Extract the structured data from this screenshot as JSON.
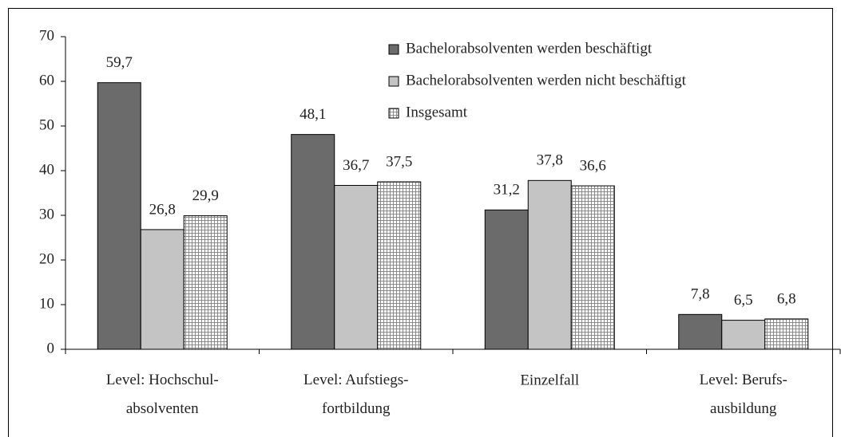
{
  "chart_data": {
    "type": "bar",
    "categories": [
      "Level: Hochschul-\nabsolventen",
      "Level: Aufstiegs-\nfortbildung",
      "Einzelfall",
      "Level: Berufs-\nausbildung"
    ],
    "series": [
      {
        "name": "Bachelorabsolventen werden beschäftigt",
        "color": "#6b6b6b",
        "values": [
          59.7,
          48.1,
          31.2,
          7.8
        ],
        "value_labels": [
          "59,7",
          "48,1",
          "31,2",
          "7,8"
        ]
      },
      {
        "name": "Bachelorabsolventen werden nicht beschäftigt",
        "color": "#c4c4c4",
        "values": [
          26.8,
          36.7,
          37.8,
          6.5
        ],
        "value_labels": [
          "26,8",
          "36,7",
          "37,8",
          "6,5"
        ]
      },
      {
        "name": "Insgesamt",
        "color": "#ffffff",
        "pattern": "grid",
        "values": [
          29.9,
          37.5,
          36.6,
          6.8
        ],
        "value_labels": [
          "29,9",
          "37,5",
          "36,6",
          "6,8"
        ]
      }
    ],
    "ylim": [
      0,
      70
    ],
    "yticks": [
      0,
      10,
      20,
      30,
      40,
      50,
      60,
      70
    ],
    "legend": "top-right"
  }
}
